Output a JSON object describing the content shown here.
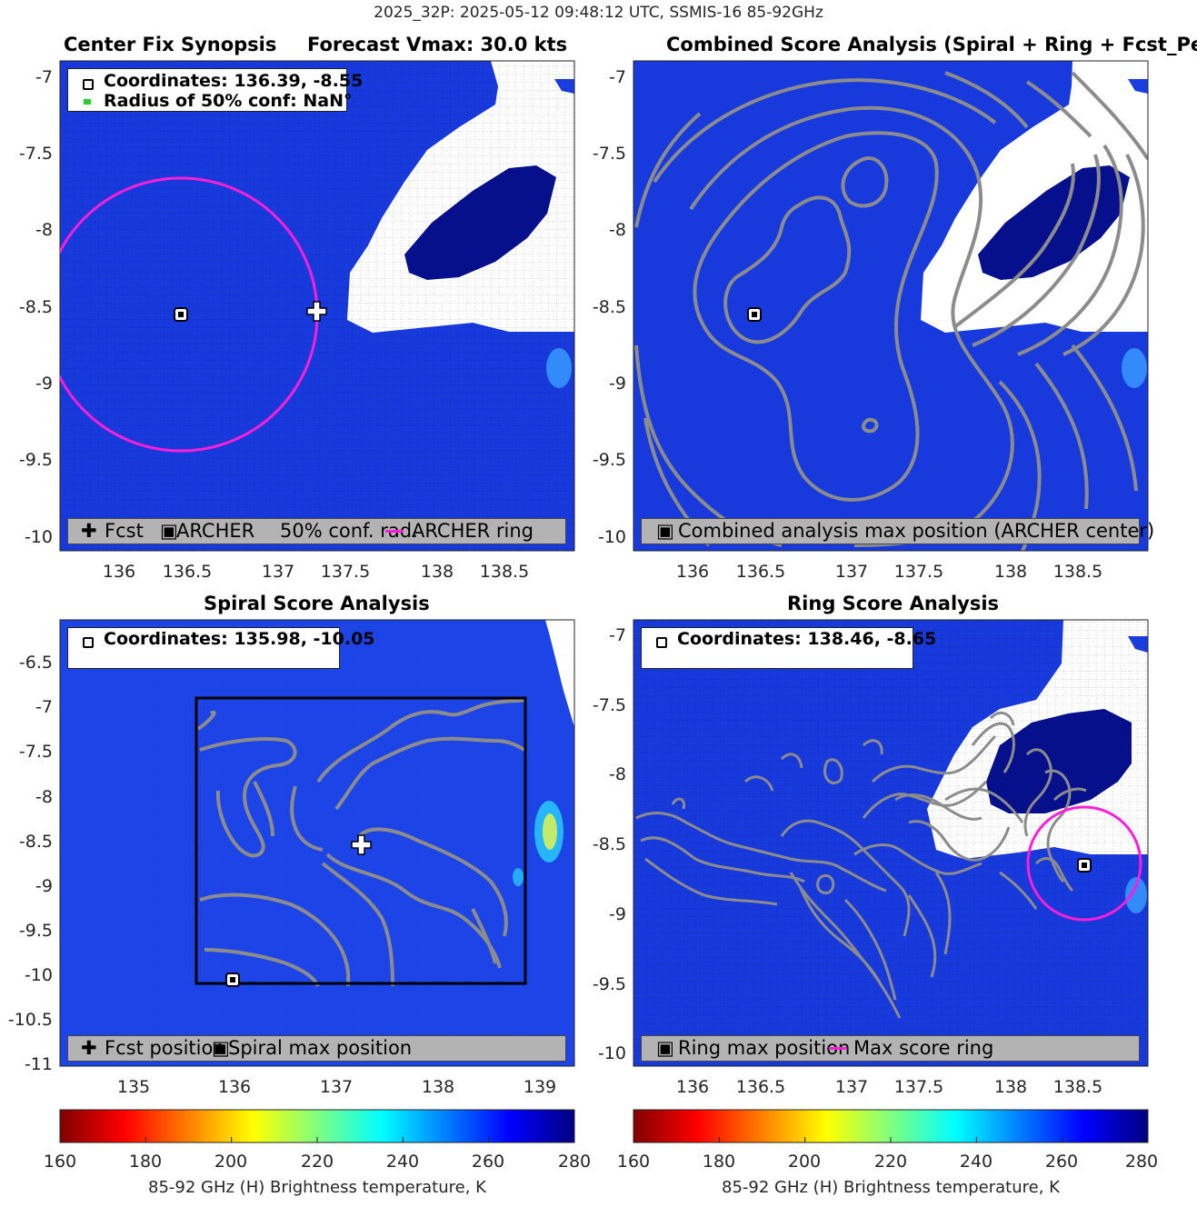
{
  "figure": {
    "suptitle": "2025_32P: 2025-05-12 09:48:12 UTC, SSMIS-16 85-92GHz"
  },
  "colors": {
    "background_tb": "#1a3de0",
    "cold_patch": "#ffffff",
    "deep_patch": "#06108c",
    "contour": "#8c8c8c",
    "ring": "#ff1fd8",
    "marker": "#000000",
    "legend_bg": "#b3b3b3"
  },
  "chart_data": [
    {
      "type": "heatmap",
      "title_left": "Center Fix Synopsis",
      "title_right": "Forecast Vmax: 30.0 kts",
      "xlim": [
        135.6,
        138.85
      ],
      "ylim": [
        -10.05,
        -6.92
      ],
      "xticks": [
        "136",
        "136.5",
        "137",
        "137.5",
        "138",
        "138.5"
      ],
      "yticks": [
        "-7",
        "-7.5",
        "-8",
        "-8.5",
        "-9",
        "-9.5",
        "-10"
      ],
      "grid": true,
      "infobox": [
        "Coordinates: 136.39, -8.55",
        "Radius of 50% conf: NaN°"
      ],
      "legend": [
        "Fcst",
        "ARCHER",
        "50% conf. rad.",
        "ARCHER ring"
      ],
      "points": {
        "archer": {
          "x": 136.39,
          "y": -8.55
        },
        "fcst": {
          "x": 137.25,
          "y": -8.5
        }
      },
      "ring": {
        "x": 136.39,
        "y": -8.55,
        "radius_deg": 0.86
      }
    },
    {
      "type": "heatmap",
      "title": "Combined Score Analysis (Spiral + Ring + Fcst_Pe",
      "xlim": [
        135.6,
        138.85
      ],
      "ylim": [
        -10.05,
        -6.92
      ],
      "xticks": [
        "136",
        "136.5",
        "137",
        "137.5",
        "138",
        "138.5"
      ],
      "yticks": [
        "-7",
        "-7.5",
        "-8",
        "-8.5",
        "-9",
        "-9.5",
        "-10"
      ],
      "grid": false,
      "legend": [
        "Combined analysis max position (ARCHER center)"
      ],
      "points": {
        "archer": {
          "x": 136.39,
          "y": -8.55
        }
      }
    },
    {
      "type": "heatmap",
      "title": "Spiral Score Analysis",
      "xlim": [
        134.3,
        139.35
      ],
      "ylim": [
        -11.0,
        -6.2
      ],
      "xticks": [
        "135",
        "136",
        "137",
        "138",
        "139"
      ],
      "yticks": [
        "-6.5",
        "-7",
        "-7.5",
        "-8",
        "-8.5",
        "-9",
        "-9.5",
        "-10",
        "-10.5",
        "-11"
      ],
      "grid": false,
      "infobox": [
        "Coordinates: 135.98, -10.05"
      ],
      "legend": [
        "Fcst position",
        "Spiral max position"
      ],
      "points": {
        "spiral_max": {
          "x": 135.98,
          "y": -10.05
        },
        "fcst": {
          "x": 137.25,
          "y": -8.5
        }
      },
      "search_box": {
        "x0": 135.6,
        "x1": 138.85,
        "y0": -10.1,
        "y1": -6.9
      }
    },
    {
      "type": "heatmap",
      "title": "Ring Score Analysis",
      "xlim": [
        135.6,
        138.85
      ],
      "ylim": [
        -10.05,
        -6.92
      ],
      "xticks": [
        "136",
        "136.5",
        "137",
        "137.5",
        "138",
        "138.5"
      ],
      "yticks": [
        "-7",
        "-7.5",
        "-8",
        "-8.5",
        "-9",
        "-9.5",
        "-10"
      ],
      "grid": true,
      "infobox": [
        "Coordinates: 138.46, -8.65"
      ],
      "legend": [
        "Ring max position",
        "Max score ring"
      ],
      "points": {
        "ring_max": {
          "x": 138.46,
          "y": -8.65
        }
      },
      "ring": {
        "x": 138.46,
        "y": -8.65,
        "radius_deg": 0.36
      }
    }
  ],
  "colorbars": [
    {
      "ticks": [
        "160",
        "180",
        "200",
        "220",
        "240",
        "260",
        "280"
      ],
      "range": [
        160,
        280
      ],
      "label": "85-92 GHz (H) Brightness temperature, K"
    },
    {
      "ticks": [
        "160",
        "180",
        "200",
        "220",
        "240",
        "260",
        "280"
      ],
      "range": [
        160,
        280
      ],
      "label": "85-92 GHz (H) Brightness temperature, K"
    }
  ]
}
